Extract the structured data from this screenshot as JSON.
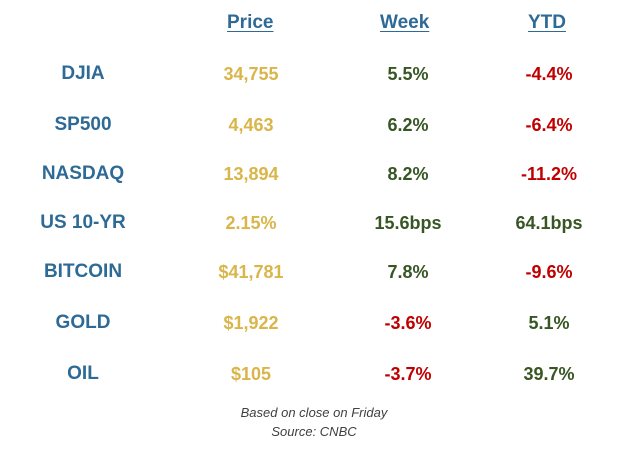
{
  "headers": {
    "price": "Price",
    "week": "Week",
    "ytd": "YTD"
  },
  "rows": [
    {
      "name": "DJIA",
      "price": "34,755",
      "week": "5.5%",
      "week_dir": "pos",
      "ytd": "-4.4%",
      "ytd_dir": "neg"
    },
    {
      "name": "SP500",
      "price": "4,463",
      "week": "6.2%",
      "week_dir": "pos",
      "ytd": "-6.4%",
      "ytd_dir": "neg"
    },
    {
      "name": "NASDAQ",
      "price": "13,894",
      "week": "8.2%",
      "week_dir": "pos",
      "ytd": "-11.2%",
      "ytd_dir": "neg"
    },
    {
      "name": "US 10-YR",
      "price": "2.15%",
      "week": "15.6bps",
      "week_dir": "pos",
      "ytd": "64.1bps",
      "ytd_dir": "pos"
    },
    {
      "name": "BITCOIN",
      "price": "$41,781",
      "week": "7.8%",
      "week_dir": "pos",
      "ytd": "-9.6%",
      "ytd_dir": "neg"
    },
    {
      "name": "GOLD",
      "price": "$1,922",
      "week": "-3.6%",
      "week_dir": "neg",
      "ytd": "5.1%",
      "ytd_dir": "pos"
    },
    {
      "name": "OIL",
      "price": "$105",
      "week": "-3.7%",
      "week_dir": "neg",
      "ytd": "39.7%",
      "ytd_dir": "pos"
    }
  ],
  "footer": {
    "line1": "Based on close on Friday",
    "line2": "Source: CNBC"
  },
  "colors": {
    "label_blue": "#2e6a96",
    "price_gold": "#d9b54a",
    "positive_green": "#375623",
    "negative_red": "#c00000"
  }
}
